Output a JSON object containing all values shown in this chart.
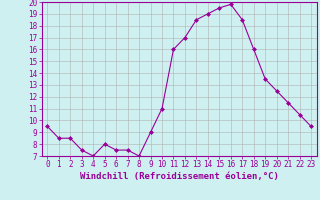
{
  "x": [
    0,
    1,
    2,
    3,
    4,
    5,
    6,
    7,
    8,
    9,
    10,
    11,
    12,
    13,
    14,
    15,
    16,
    17,
    18,
    19,
    20,
    21,
    22,
    23
  ],
  "y": [
    9.5,
    8.5,
    8.5,
    7.5,
    7.0,
    8.0,
    7.5,
    7.5,
    7.0,
    9.0,
    11.0,
    16.0,
    17.0,
    18.5,
    19.0,
    19.5,
    19.8,
    18.5,
    16.0,
    13.5,
    12.5,
    11.5,
    10.5,
    9.5
  ],
  "line_color": "#990099",
  "marker": "D",
  "marker_size": 2,
  "bg_color": "#cff0f0",
  "grid_color": "#b0b0b0",
  "xlabel": "Windchill (Refroidissement éolien,°C)",
  "ylim": [
    7,
    20
  ],
  "xlim": [
    -0.5,
    23.5
  ],
  "yticks": [
    7,
    8,
    9,
    10,
    11,
    12,
    13,
    14,
    15,
    16,
    17,
    18,
    19,
    20
  ],
  "xticks": [
    0,
    1,
    2,
    3,
    4,
    5,
    6,
    7,
    8,
    9,
    10,
    11,
    12,
    13,
    14,
    15,
    16,
    17,
    18,
    19,
    20,
    21,
    22,
    23
  ],
  "tick_fontsize": 5.5,
  "xlabel_fontsize": 6.5,
  "label_color": "#990099",
  "axis_color": "#990099"
}
